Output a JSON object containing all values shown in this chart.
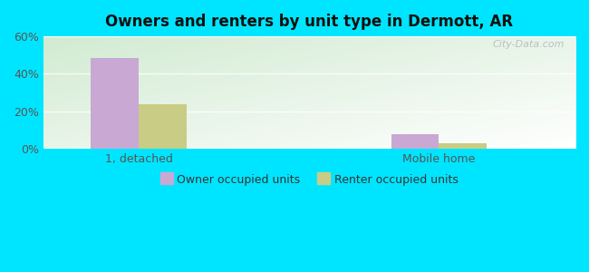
{
  "title": "Owners and renters by unit type in Dermott, AR",
  "categories": [
    "1, detached",
    "Mobile home"
  ],
  "owner_values": [
    48.5,
    8.0
  ],
  "renter_values": [
    24.0,
    3.0
  ],
  "owner_color": "#c9a8d4",
  "renter_color": "#c8cc84",
  "ylim": [
    0,
    60
  ],
  "yticks": [
    0,
    20,
    40,
    60
  ],
  "ytick_labels": [
    "0%",
    "20%",
    "40%",
    "60%"
  ],
  "background_outer": "#00e5ff",
  "legend_owner": "Owner occupied units",
  "legend_renter": "Renter occupied units",
  "bar_width": 0.35,
  "group_positions": [
    1.0,
    3.2
  ],
  "watermark": "City-Data.com",
  "grid_color": "#dddddd",
  "tick_label_color": "#555555"
}
